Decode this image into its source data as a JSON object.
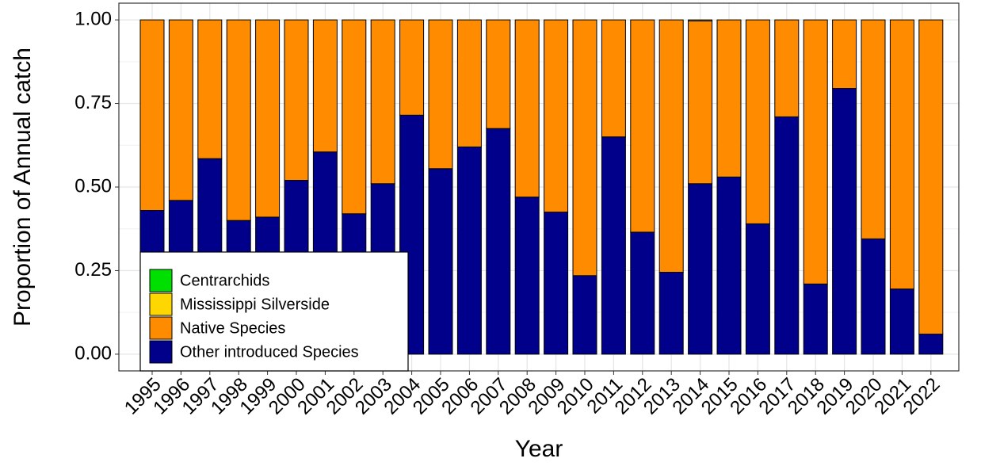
{
  "chart_data": {
    "type": "stacked_bar",
    "x_label": "Year",
    "y_label": "Proportion of Annual catch",
    "categories": [
      "1995",
      "1996",
      "1997",
      "1998",
      "1999",
      "2000",
      "2001",
      "2002",
      "2003",
      "2004",
      "2005",
      "2006",
      "2007",
      "2008",
      "2009",
      "2010",
      "2011",
      "2012",
      "2013",
      "2014",
      "2015",
      "2016",
      "2017",
      "2018",
      "2019",
      "2020",
      "2021",
      "2022"
    ],
    "series": [
      {
        "name": "Centrarchids",
        "color": "#00e000",
        "values": [
          0,
          0,
          0,
          0,
          0,
          0,
          0,
          0,
          0,
          0,
          0,
          0,
          0,
          0,
          0,
          0,
          0,
          0,
          0,
          0,
          0,
          0,
          0,
          0,
          0,
          0,
          0,
          0
        ]
      },
      {
        "name": "Mississippi Silverside",
        "color": "#ffd700",
        "values": [
          0,
          0,
          0,
          0,
          0,
          0,
          0,
          0,
          0,
          0,
          0,
          0,
          0,
          0,
          0,
          0,
          0,
          0,
          0,
          0.003,
          0,
          0,
          0,
          0,
          0,
          0,
          0,
          0
        ]
      },
      {
        "name": "Native Species",
        "color": "#ff8c00",
        "values": [
          0.57,
          0.54,
          0.415,
          0.6,
          0.59,
          0.48,
          0.395,
          0.58,
          0.49,
          0.285,
          0.445,
          0.38,
          0.325,
          0.53,
          0.575,
          0.765,
          0.35,
          0.635,
          0.755,
          0.487,
          0.47,
          0.61,
          0.29,
          0.79,
          0.205,
          0.655,
          0.805,
          0.94
        ]
      },
      {
        "name": "Other introduced Species",
        "color": "#00008b",
        "values": [
          0.43,
          0.46,
          0.585,
          0.4,
          0.41,
          0.52,
          0.605,
          0.42,
          0.51,
          0.715,
          0.555,
          0.62,
          0.675,
          0.47,
          0.425,
          0.235,
          0.65,
          0.365,
          0.245,
          0.51,
          0.53,
          0.39,
          0.71,
          0.21,
          0.795,
          0.345,
          0.195,
          0.06
        ]
      }
    ],
    "ylim": [
      -0.05,
      1.05
    ],
    "yticks": [
      {
        "value": 0,
        "label": "0.00"
      },
      {
        "value": 0.25,
        "label": "0.25"
      },
      {
        "value": 0.5,
        "label": "0.50"
      },
      {
        "value": 0.75,
        "label": "0.75"
      },
      {
        "value": 1,
        "label": "1.00"
      }
    ],
    "grid": true,
    "legend_position": "bottom-left"
  }
}
